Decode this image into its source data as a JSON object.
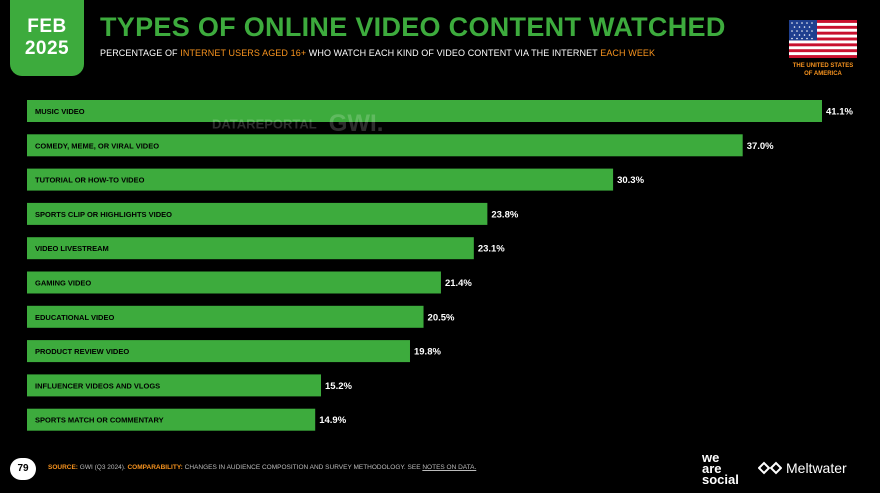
{
  "badge": {
    "month": "FEB",
    "year": "2025"
  },
  "header": {
    "title": "TYPES OF ONLINE VIDEO CONTENT WATCHED",
    "subtitle_parts": [
      "PERCENTAGE OF ",
      "INTERNET USERS AGED 16+",
      " WHO WATCH EACH KIND OF VIDEO CONTENT VIA THE INTERNET ",
      "EACH WEEK"
    ]
  },
  "country": {
    "line1": "THE UNITED STATES",
    "line2": "OF AMERICA"
  },
  "watermark": {
    "brand1": "DATAREPORTAL",
    "brand2": "GWI."
  },
  "chart_data": {
    "type": "bar",
    "orientation": "horizontal",
    "categories": [
      "MUSIC VIDEO",
      "COMEDY, MEME, OR VIRAL VIDEO",
      "TUTORIAL OR HOW-TO VIDEO",
      "SPORTS CLIP OR HIGHLIGHTS VIDEO",
      "VIDEO LIVESTREAM",
      "GAMING VIDEO",
      "EDUCATIONAL VIDEO",
      "PRODUCT REVIEW VIDEO",
      "INFLUENCER VIDEOS AND VLOGS",
      "SPORTS MATCH OR COMMENTARY"
    ],
    "values": [
      41.1,
      37.0,
      30.3,
      23.8,
      23.1,
      21.4,
      20.5,
      19.8,
      15.2,
      14.9
    ],
    "value_labels": [
      "41.1%",
      "37.0%",
      "30.3%",
      "23.8%",
      "23.1%",
      "21.4%",
      "20.5%",
      "19.8%",
      "15.2%",
      "14.9%"
    ],
    "xlim": [
      0,
      41.1
    ],
    "bar_color": "#3dab3d",
    "grid": false
  },
  "footer": {
    "page": "79",
    "source_label": "SOURCE:",
    "source_text": "GWI (Q3 2024).",
    "comparability_label": "COMPARABILITY:",
    "comparability_text": "CHANGES IN AUDIENCE COMPOSITION AND SURVEY METHODOLOGY. SEE",
    "notes_link": "NOTES ON DATA.",
    "brand_was": [
      "we",
      "are",
      "social"
    ],
    "brand_meltwater": "Meltwater"
  },
  "colors": {
    "accent": "#3dab3d",
    "highlight": "#f7931e",
    "background": "#000000"
  }
}
